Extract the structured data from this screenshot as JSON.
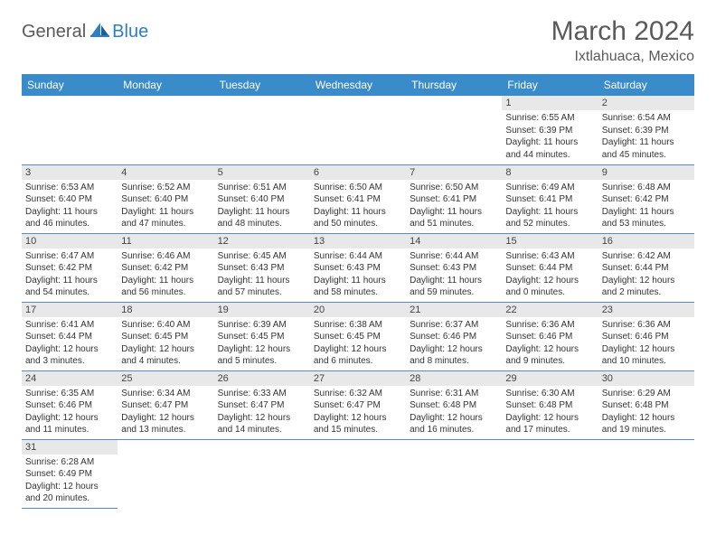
{
  "logo": {
    "general": "General",
    "blue": "Blue"
  },
  "title": "March 2024",
  "location": "Ixtlahuaca, Mexico",
  "colors": {
    "header_bg": "#3a8bc9",
    "header_fg": "#ffffff",
    "daynum_bg": "#e8e8e8",
    "cell_border": "#5b8bb8",
    "text": "#333333",
    "title": "#5a5a5a",
    "logo_gray": "#5a5a5a",
    "logo_blue": "#2d7fc4"
  },
  "weekdays": [
    "Sunday",
    "Monday",
    "Tuesday",
    "Wednesday",
    "Thursday",
    "Friday",
    "Saturday"
  ],
  "weeks": [
    [
      null,
      null,
      null,
      null,
      null,
      {
        "n": "1",
        "sr": "Sunrise: 6:55 AM",
        "ss": "Sunset: 6:39 PM",
        "dl": "Daylight: 11 hours and 44 minutes."
      },
      {
        "n": "2",
        "sr": "Sunrise: 6:54 AM",
        "ss": "Sunset: 6:39 PM",
        "dl": "Daylight: 11 hours and 45 minutes."
      }
    ],
    [
      {
        "n": "3",
        "sr": "Sunrise: 6:53 AM",
        "ss": "Sunset: 6:40 PM",
        "dl": "Daylight: 11 hours and 46 minutes."
      },
      {
        "n": "4",
        "sr": "Sunrise: 6:52 AM",
        "ss": "Sunset: 6:40 PM",
        "dl": "Daylight: 11 hours and 47 minutes."
      },
      {
        "n": "5",
        "sr": "Sunrise: 6:51 AM",
        "ss": "Sunset: 6:40 PM",
        "dl": "Daylight: 11 hours and 48 minutes."
      },
      {
        "n": "6",
        "sr": "Sunrise: 6:50 AM",
        "ss": "Sunset: 6:41 PM",
        "dl": "Daylight: 11 hours and 50 minutes."
      },
      {
        "n": "7",
        "sr": "Sunrise: 6:50 AM",
        "ss": "Sunset: 6:41 PM",
        "dl": "Daylight: 11 hours and 51 minutes."
      },
      {
        "n": "8",
        "sr": "Sunrise: 6:49 AM",
        "ss": "Sunset: 6:41 PM",
        "dl": "Daylight: 11 hours and 52 minutes."
      },
      {
        "n": "9",
        "sr": "Sunrise: 6:48 AM",
        "ss": "Sunset: 6:42 PM",
        "dl": "Daylight: 11 hours and 53 minutes."
      }
    ],
    [
      {
        "n": "10",
        "sr": "Sunrise: 6:47 AM",
        "ss": "Sunset: 6:42 PM",
        "dl": "Daylight: 11 hours and 54 minutes."
      },
      {
        "n": "11",
        "sr": "Sunrise: 6:46 AM",
        "ss": "Sunset: 6:42 PM",
        "dl": "Daylight: 11 hours and 56 minutes."
      },
      {
        "n": "12",
        "sr": "Sunrise: 6:45 AM",
        "ss": "Sunset: 6:43 PM",
        "dl": "Daylight: 11 hours and 57 minutes."
      },
      {
        "n": "13",
        "sr": "Sunrise: 6:44 AM",
        "ss": "Sunset: 6:43 PM",
        "dl": "Daylight: 11 hours and 58 minutes."
      },
      {
        "n": "14",
        "sr": "Sunrise: 6:44 AM",
        "ss": "Sunset: 6:43 PM",
        "dl": "Daylight: 11 hours and 59 minutes."
      },
      {
        "n": "15",
        "sr": "Sunrise: 6:43 AM",
        "ss": "Sunset: 6:44 PM",
        "dl": "Daylight: 12 hours and 0 minutes."
      },
      {
        "n": "16",
        "sr": "Sunrise: 6:42 AM",
        "ss": "Sunset: 6:44 PM",
        "dl": "Daylight: 12 hours and 2 minutes."
      }
    ],
    [
      {
        "n": "17",
        "sr": "Sunrise: 6:41 AM",
        "ss": "Sunset: 6:44 PM",
        "dl": "Daylight: 12 hours and 3 minutes."
      },
      {
        "n": "18",
        "sr": "Sunrise: 6:40 AM",
        "ss": "Sunset: 6:45 PM",
        "dl": "Daylight: 12 hours and 4 minutes."
      },
      {
        "n": "19",
        "sr": "Sunrise: 6:39 AM",
        "ss": "Sunset: 6:45 PM",
        "dl": "Daylight: 12 hours and 5 minutes."
      },
      {
        "n": "20",
        "sr": "Sunrise: 6:38 AM",
        "ss": "Sunset: 6:45 PM",
        "dl": "Daylight: 12 hours and 6 minutes."
      },
      {
        "n": "21",
        "sr": "Sunrise: 6:37 AM",
        "ss": "Sunset: 6:46 PM",
        "dl": "Daylight: 12 hours and 8 minutes."
      },
      {
        "n": "22",
        "sr": "Sunrise: 6:36 AM",
        "ss": "Sunset: 6:46 PM",
        "dl": "Daylight: 12 hours and 9 minutes."
      },
      {
        "n": "23",
        "sr": "Sunrise: 6:36 AM",
        "ss": "Sunset: 6:46 PM",
        "dl": "Daylight: 12 hours and 10 minutes."
      }
    ],
    [
      {
        "n": "24",
        "sr": "Sunrise: 6:35 AM",
        "ss": "Sunset: 6:46 PM",
        "dl": "Daylight: 12 hours and 11 minutes."
      },
      {
        "n": "25",
        "sr": "Sunrise: 6:34 AM",
        "ss": "Sunset: 6:47 PM",
        "dl": "Daylight: 12 hours and 13 minutes."
      },
      {
        "n": "26",
        "sr": "Sunrise: 6:33 AM",
        "ss": "Sunset: 6:47 PM",
        "dl": "Daylight: 12 hours and 14 minutes."
      },
      {
        "n": "27",
        "sr": "Sunrise: 6:32 AM",
        "ss": "Sunset: 6:47 PM",
        "dl": "Daylight: 12 hours and 15 minutes."
      },
      {
        "n": "28",
        "sr": "Sunrise: 6:31 AM",
        "ss": "Sunset: 6:48 PM",
        "dl": "Daylight: 12 hours and 16 minutes."
      },
      {
        "n": "29",
        "sr": "Sunrise: 6:30 AM",
        "ss": "Sunset: 6:48 PM",
        "dl": "Daylight: 12 hours and 17 minutes."
      },
      {
        "n": "30",
        "sr": "Sunrise: 6:29 AM",
        "ss": "Sunset: 6:48 PM",
        "dl": "Daylight: 12 hours and 19 minutes."
      }
    ],
    [
      {
        "n": "31",
        "sr": "Sunrise: 6:28 AM",
        "ss": "Sunset: 6:49 PM",
        "dl": "Daylight: 12 hours and 20 minutes."
      },
      null,
      null,
      null,
      null,
      null,
      null
    ]
  ]
}
